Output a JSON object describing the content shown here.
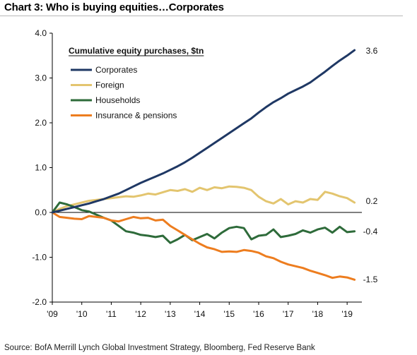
{
  "title": "Chart 3: Who is buying equities…Corporates",
  "source": "Source: BofA Merrill Lynch Global Investment Strategy, Bloomberg, Fed Reserve Bank",
  "chart_data": {
    "type": "line",
    "title": "Chart 3: Who is buying equities…Corporates",
    "legend_title": "Cumulative equity purchases, $tn",
    "legend_position": "top-left",
    "grid": false,
    "xlim": [
      2009,
      2019.5
    ],
    "ylim": [
      -2.0,
      4.0
    ],
    "x_ticks": [
      "'09",
      "'10",
      "'11",
      "'12",
      "'13",
      "'14",
      "'15",
      "'16",
      "'17",
      "'18",
      "'19"
    ],
    "y_ticks": [
      "4.0",
      "3.0",
      "2.0",
      "1.0",
      "0.0",
      "-1.0",
      "-2.0"
    ],
    "series": [
      {
        "name": "Corporates",
        "color": "#1f3864",
        "end_label": "3.6",
        "x": [
          2009.0,
          2009.25,
          2009.5,
          2009.75,
          2010.0,
          2010.25,
          2010.5,
          2010.75,
          2011.0,
          2011.25,
          2011.5,
          2011.75,
          2012.0,
          2012.25,
          2012.5,
          2012.75,
          2013.0,
          2013.25,
          2013.5,
          2013.75,
          2014.0,
          2014.25,
          2014.5,
          2014.75,
          2015.0,
          2015.25,
          2015.5,
          2015.75,
          2016.0,
          2016.25,
          2016.5,
          2016.75,
          2017.0,
          2017.25,
          2017.5,
          2017.75,
          2018.0,
          2018.25,
          2018.5,
          2018.75,
          2019.0,
          2019.25
        ],
        "y": [
          0.0,
          0.04,
          0.08,
          0.12,
          0.16,
          0.2,
          0.25,
          0.3,
          0.36,
          0.42,
          0.5,
          0.58,
          0.66,
          0.73,
          0.8,
          0.87,
          0.95,
          1.03,
          1.12,
          1.22,
          1.33,
          1.44,
          1.55,
          1.66,
          1.77,
          1.88,
          1.99,
          2.1,
          2.23,
          2.35,
          2.46,
          2.55,
          2.65,
          2.73,
          2.81,
          2.9,
          3.02,
          3.14,
          3.27,
          3.39,
          3.5,
          3.62
        ]
      },
      {
        "name": "Foreign",
        "color": "#e3c56f",
        "end_label": "0.2",
        "x": [
          2009.0,
          2009.25,
          2009.5,
          2009.75,
          2010.0,
          2010.25,
          2010.5,
          2010.75,
          2011.0,
          2011.25,
          2011.5,
          2011.75,
          2012.0,
          2012.25,
          2012.5,
          2012.75,
          2013.0,
          2013.25,
          2013.5,
          2013.75,
          2014.0,
          2014.25,
          2014.5,
          2014.75,
          2015.0,
          2015.25,
          2015.5,
          2015.75,
          2016.0,
          2016.25,
          2016.5,
          2016.75,
          2017.0,
          2017.25,
          2017.5,
          2017.75,
          2018.0,
          2018.25,
          2018.5,
          2018.75,
          2019.0,
          2019.25
        ],
        "y": [
          0.0,
          0.08,
          0.14,
          0.18,
          0.22,
          0.26,
          0.28,
          0.3,
          0.32,
          0.34,
          0.36,
          0.35,
          0.38,
          0.42,
          0.4,
          0.45,
          0.5,
          0.48,
          0.52,
          0.46,
          0.55,
          0.5,
          0.56,
          0.54,
          0.58,
          0.57,
          0.55,
          0.5,
          0.35,
          0.25,
          0.2,
          0.3,
          0.18,
          0.25,
          0.22,
          0.3,
          0.28,
          0.46,
          0.42,
          0.36,
          0.32,
          0.22
        ]
      },
      {
        "name": "Households",
        "color": "#2e6b3a",
        "end_label": "-0.4",
        "x": [
          2009.0,
          2009.25,
          2009.5,
          2009.75,
          2010.0,
          2010.25,
          2010.5,
          2010.75,
          2011.0,
          2011.25,
          2011.5,
          2011.75,
          2012.0,
          2012.25,
          2012.5,
          2012.75,
          2013.0,
          2013.25,
          2013.5,
          2013.75,
          2014.0,
          2014.25,
          2014.5,
          2014.75,
          2015.0,
          2015.25,
          2015.5,
          2015.75,
          2016.0,
          2016.25,
          2016.5,
          2016.75,
          2017.0,
          2017.25,
          2017.5,
          2017.75,
          2018.0,
          2018.25,
          2018.5,
          2018.75,
          2019.0,
          2019.25
        ],
        "y": [
          0.0,
          0.22,
          0.18,
          0.12,
          0.05,
          0.02,
          -0.05,
          -0.12,
          -0.18,
          -0.3,
          -0.42,
          -0.45,
          -0.5,
          -0.52,
          -0.55,
          -0.52,
          -0.68,
          -0.6,
          -0.5,
          -0.62,
          -0.55,
          -0.48,
          -0.58,
          -0.45,
          -0.35,
          -0.32,
          -0.35,
          -0.6,
          -0.52,
          -0.5,
          -0.38,
          -0.55,
          -0.52,
          -0.48,
          -0.4,
          -0.45,
          -0.38,
          -0.34,
          -0.45,
          -0.32,
          -0.44,
          -0.42
        ]
      },
      {
        "name": "Insurance & pensions",
        "color": "#ed7d1f",
        "end_label": "-1.5",
        "x": [
          2009.0,
          2009.25,
          2009.5,
          2009.75,
          2010.0,
          2010.25,
          2010.5,
          2010.75,
          2011.0,
          2011.25,
          2011.5,
          2011.75,
          2012.0,
          2012.25,
          2012.5,
          2012.75,
          2013.0,
          2013.25,
          2013.5,
          2013.75,
          2014.0,
          2014.25,
          2014.5,
          2014.75,
          2015.0,
          2015.25,
          2015.5,
          2015.75,
          2016.0,
          2016.25,
          2016.5,
          2016.75,
          2017.0,
          2017.25,
          2017.5,
          2017.75,
          2018.0,
          2018.25,
          2018.5,
          2018.75,
          2019.0,
          2019.25
        ],
        "y": [
          0.0,
          -0.1,
          -0.12,
          -0.14,
          -0.15,
          -0.08,
          -0.1,
          -0.12,
          -0.18,
          -0.2,
          -0.15,
          -0.1,
          -0.13,
          -0.12,
          -0.18,
          -0.16,
          -0.3,
          -0.4,
          -0.5,
          -0.6,
          -0.7,
          -0.78,
          -0.82,
          -0.88,
          -0.87,
          -0.88,
          -0.84,
          -0.86,
          -0.9,
          -0.98,
          -1.02,
          -1.1,
          -1.16,
          -1.2,
          -1.24,
          -1.3,
          -1.35,
          -1.4,
          -1.46,
          -1.43,
          -1.45,
          -1.5
        ]
      }
    ]
  }
}
